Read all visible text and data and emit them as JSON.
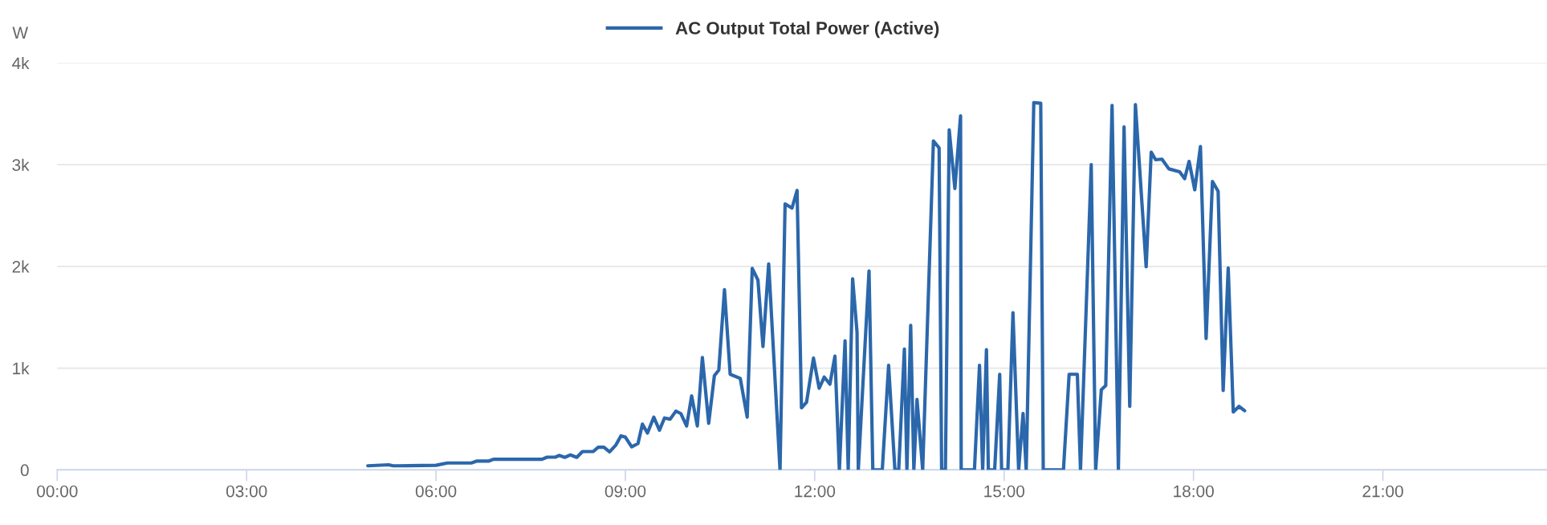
{
  "chart_data": {
    "type": "line",
    "ylabel": "W",
    "xlim": [
      0,
      23.6
    ],
    "ylim": [
      0,
      4000
    ],
    "xticks": [
      {
        "value": 0,
        "label": "00:00"
      },
      {
        "value": 3,
        "label": "03:00"
      },
      {
        "value": 6,
        "label": "06:00"
      },
      {
        "value": 9,
        "label": "09:00"
      },
      {
        "value": 12,
        "label": "12:00"
      },
      {
        "value": 15,
        "label": "15:00"
      },
      {
        "value": 18,
        "label": "18:00"
      },
      {
        "value": 21,
        "label": "21:00"
      }
    ],
    "yticks": [
      0,
      {
        "value": 1000,
        "label": "1k"
      },
      {
        "value": 2000,
        "label": "2k"
      },
      {
        "value": 3000,
        "label": "3k"
      },
      {
        "value": 4000,
        "label": "4k"
      }
    ],
    "grid": "y",
    "legend": "top",
    "marker": "none",
    "line_style": "solid",
    "series": [
      {
        "name": "AC Output Total Power (Active)",
        "color": "#2b67ab",
        "x": [
          4.92,
          5.25,
          5.32,
          5.4,
          6.0,
          6.18,
          6.56,
          6.65,
          6.84,
          6.91,
          7.68,
          7.76,
          7.89,
          7.95,
          8.04,
          8.13,
          8.23,
          8.32,
          8.49,
          8.57,
          8.66,
          8.75,
          8.85,
          8.93,
          9.0,
          9.1,
          9.2,
          9.27,
          9.35,
          9.45,
          9.54,
          9.62,
          9.71,
          9.8,
          9.88,
          9.97,
          10.05,
          10.14,
          10.22,
          10.32,
          10.41,
          10.48,
          10.57,
          10.66,
          10.82,
          10.93,
          11.01,
          11.1,
          11.18,
          11.27,
          11.45,
          11.53,
          11.64,
          11.72,
          11.79,
          11.87,
          11.98,
          12.07,
          12.15,
          12.24,
          12.32,
          12.39,
          12.48,
          12.53,
          12.6,
          12.67,
          12.69,
          12.86,
          12.92,
          13.07,
          13.17,
          13.27,
          13.33,
          13.42,
          13.46,
          13.52,
          13.57,
          13.62,
          13.71,
          13.88,
          13.97,
          14.01,
          14.07,
          14.13,
          14.22,
          14.31,
          14.32,
          14.53,
          14.61,
          14.66,
          14.72,
          14.75,
          14.85,
          14.93,
          14.96,
          15.06,
          15.14,
          15.23,
          15.3,
          15.35,
          15.47,
          15.58,
          15.62,
          15.94,
          16.03,
          16.16,
          16.21,
          16.38,
          16.45,
          16.54,
          16.61,
          16.71,
          16.81,
          16.9,
          16.99,
          17.08,
          17.25,
          17.33,
          17.4,
          17.5,
          17.61,
          17.78,
          17.86,
          17.93,
          18.02,
          18.11,
          18.2,
          18.3,
          18.39,
          18.47,
          18.55,
          18.63,
          18.72,
          18.81
        ],
        "values": [
          40,
          50,
          40,
          40,
          45,
          68,
          68,
          87,
          87,
          104,
          104,
          125,
          125,
          142,
          123,
          147,
          123,
          180,
          180,
          223,
          223,
          177,
          245,
          335,
          322,
          226,
          259,
          450,
          362,
          518,
          390,
          510,
          499,
          578,
          553,
          431,
          727,
          431,
          1104,
          458,
          926,
          981,
          1771,
          940,
          899,
          518,
          1981,
          1866,
          1213,
          2025,
          0,
          2615,
          2574,
          2747,
          610,
          665,
          1099,
          802,
          912,
          843,
          1118,
          0,
          1269,
          0,
          1879,
          1352,
          0,
          1956,
          0,
          0,
          1027,
          0,
          0,
          1187,
          0,
          1420,
          0,
          692,
          0,
          3234,
          3165,
          0,
          0,
          3343,
          2766,
          3481,
          0,
          0,
          1027,
          0,
          1181,
          0,
          0,
          940,
          0,
          0,
          1544,
          0,
          555,
          0,
          3610,
          3604,
          0,
          0,
          940,
          940,
          0,
          3000,
          0,
          788,
          830,
          3582,
          0,
          3371,
          624,
          3591,
          1997,
          3124,
          3049,
          3055,
          2959,
          2931,
          2863,
          3033,
          2753,
          3179,
          1291,
          2835,
          2739,
          780,
          1984,
          569,
          624,
          582
        ]
      }
    ]
  }
}
